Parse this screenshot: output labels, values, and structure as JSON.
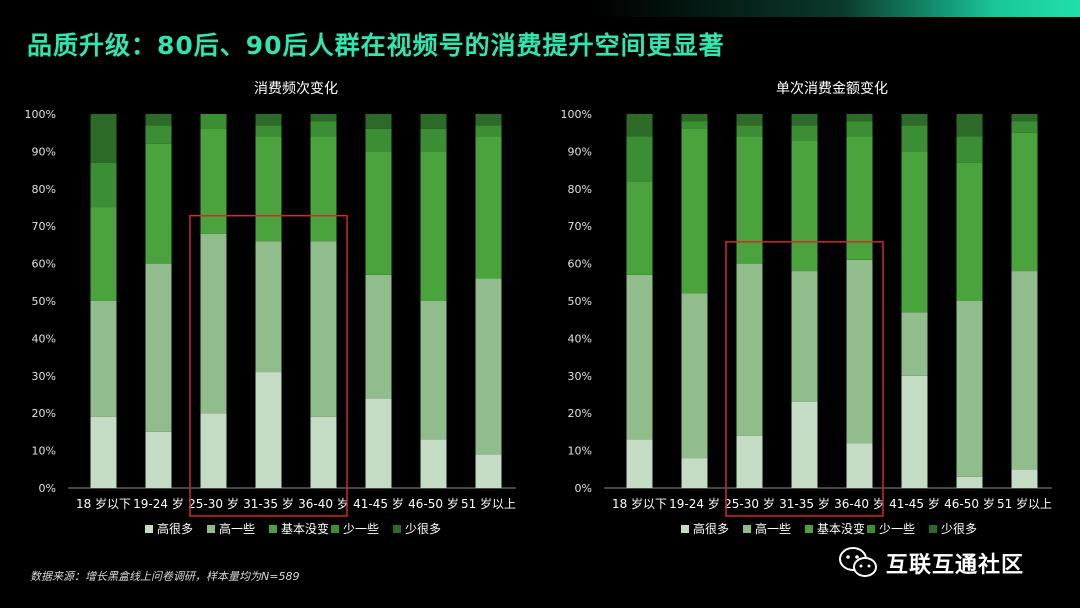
{
  "header": {
    "title": "品质升级：80后、90后人群在视频号的消费提升空间更显著"
  },
  "footnote": "数据来源：增长黑盒线上问卷调研，样本量均为N=589",
  "brand": {
    "name": "互联互通社区",
    "icon": "wechat-icon"
  },
  "colors": {
    "series": [
      "#c4dcc4",
      "#91bd8c",
      "#4aa33c",
      "#3c8e34",
      "#2b6a27"
    ],
    "highlight": "#d02a2a",
    "title": "#2fe5b0"
  },
  "chart_data": [
    {
      "type": "bar",
      "stacked": true,
      "title": "消费频次变化",
      "categories": [
        "18 岁以下",
        "19-24 岁",
        "25-30 岁",
        "31-35 岁",
        "36-40 岁",
        "41-45 岁",
        "46-50 岁",
        "51 岁以上"
      ],
      "ylim": [
        0,
        100
      ],
      "yticks": [
        "0%",
        "10%",
        "20%",
        "30%",
        "40%",
        "50%",
        "60%",
        "70%",
        "80%",
        "90%",
        "100%"
      ],
      "legend_position": "bottom",
      "highlight_categories": [
        2,
        4
      ],
      "series": [
        {
          "name": "高很多",
          "values": [
            19,
            15,
            20,
            31,
            19,
            24,
            13,
            9
          ]
        },
        {
          "name": "高一些",
          "values": [
            31,
            45,
            48,
            35,
            47,
            33,
            37,
            47
          ]
        },
        {
          "name": "基本没变",
          "values": [
            25,
            32,
            28,
            28,
            28,
            33,
            40,
            38
          ]
        },
        {
          "name": "少一些",
          "values": [
            12,
            5,
            4,
            3,
            4,
            6,
            6,
            3
          ]
        },
        {
          "name": "少很多",
          "values": [
            13,
            3,
            0,
            3,
            2,
            4,
            4,
            3
          ]
        }
      ]
    },
    {
      "type": "bar",
      "stacked": true,
      "title": "单次消费金额变化",
      "categories": [
        "18 岁以下",
        "19-24 岁",
        "25-30 岁",
        "31-35 岁",
        "36-40 岁",
        "41-45 岁",
        "46-50 岁",
        "51 岁以上"
      ],
      "ylim": [
        0,
        100
      ],
      "yticks": [
        "0%",
        "10%",
        "20%",
        "30%",
        "40%",
        "50%",
        "60%",
        "70%",
        "80%",
        "90%",
        "100%"
      ],
      "legend_position": "bottom",
      "highlight_categories": [
        2,
        4
      ],
      "series": [
        {
          "name": "高很多",
          "values": [
            13,
            8,
            14,
            23,
            12,
            30,
            3,
            5
          ]
        },
        {
          "name": "高一些",
          "values": [
            44,
            44,
            46,
            35,
            49,
            17,
            47,
            53
          ]
        },
        {
          "name": "基本没变",
          "values": [
            25,
            44,
            34,
            35,
            33,
            43,
            37,
            37
          ]
        },
        {
          "name": "少一些",
          "values": [
            12,
            2,
            3,
            4,
            4,
            7,
            7,
            3
          ]
        },
        {
          "name": "少很多",
          "values": [
            6,
            2,
            3,
            3,
            2,
            3,
            6,
            2
          ]
        }
      ]
    }
  ]
}
